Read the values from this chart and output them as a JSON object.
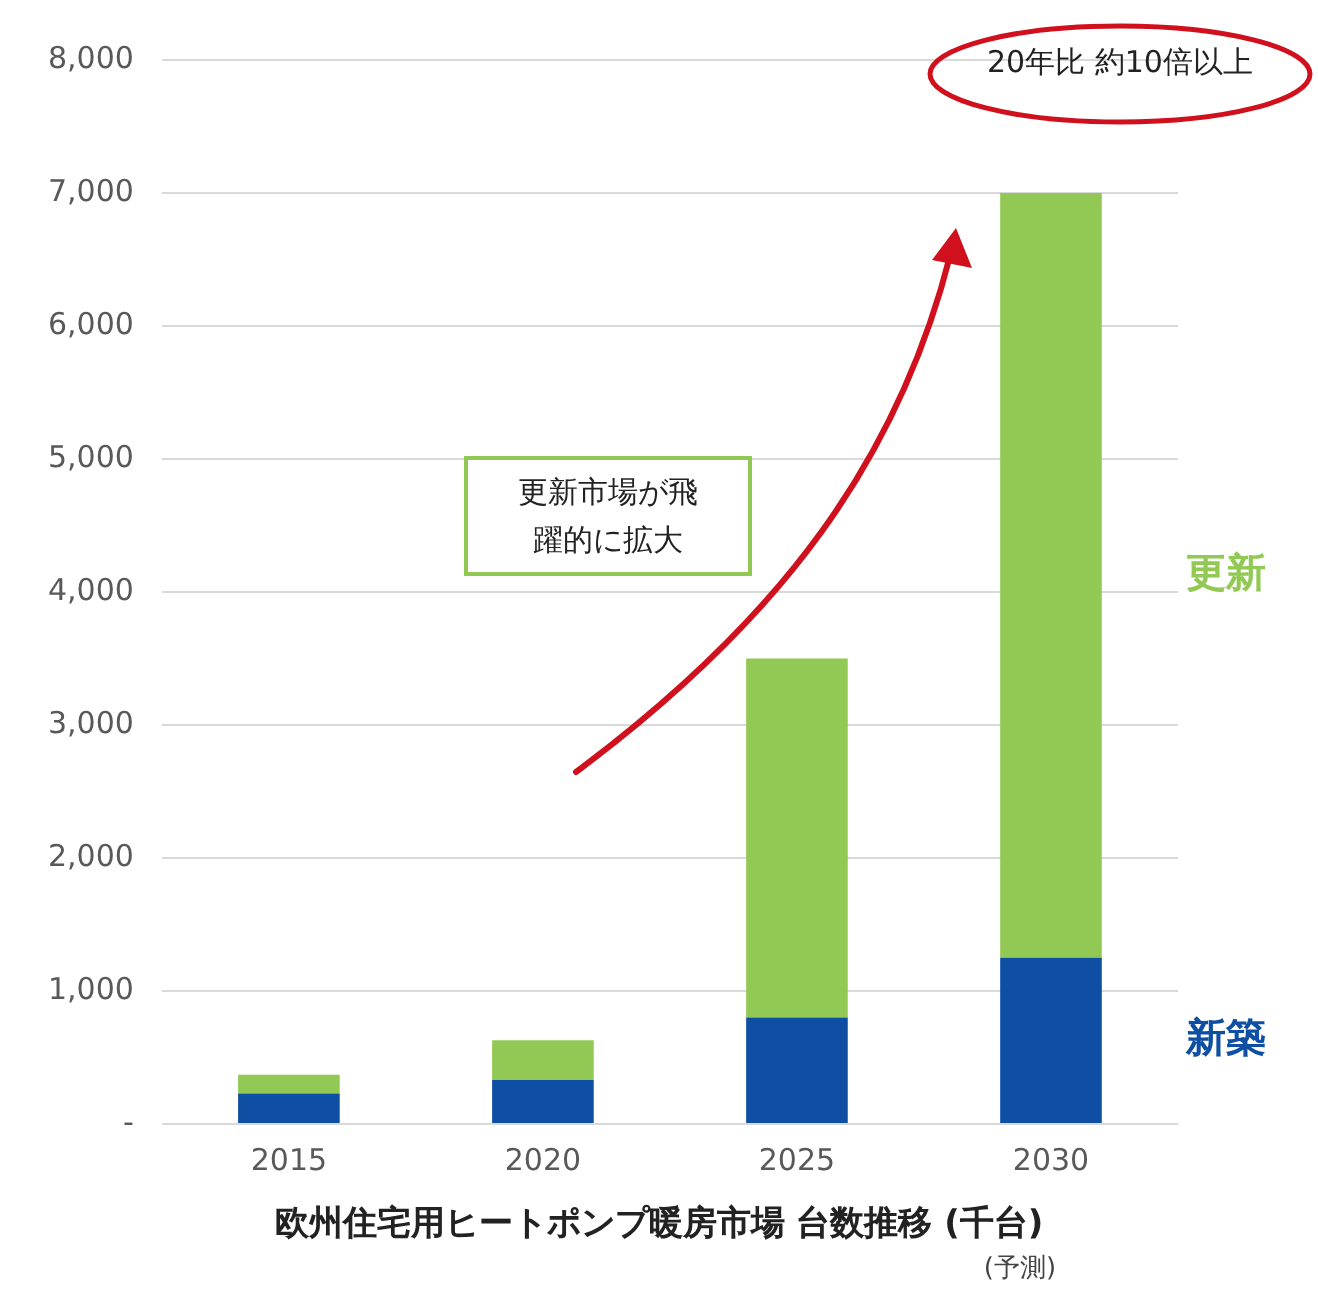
{
  "chart_data": {
    "type": "bar",
    "title": "欧州住宅用ヒートポンプ暖房市場 台数推移 (千台)",
    "categories": [
      "2015",
      "2020",
      "2025",
      "2030"
    ],
    "stacked": true,
    "series": [
      {
        "name": "新築",
        "color": "#0e4ea3",
        "values": [
          230,
          330,
          800,
          1250
        ]
      },
      {
        "name": "更新",
        "color": "#92c955",
        "values": [
          140,
          300,
          2700,
          5750
        ]
      }
    ],
    "ylim": [
      0,
      8000
    ],
    "yticks": [
      {
        "value": 0,
        "label": "-"
      },
      {
        "value": 1000,
        "label": "1,000"
      },
      {
        "value": 2000,
        "label": "2,000"
      },
      {
        "value": 3000,
        "label": "3,000"
      },
      {
        "value": 4000,
        "label": "4,000"
      },
      {
        "value": 5000,
        "label": "5,000"
      },
      {
        "value": 6000,
        "label": "6,000"
      },
      {
        "value": 7000,
        "label": "7,000"
      },
      {
        "value": 8000,
        "label": "8,000"
      }
    ],
    "grid": "y",
    "legend": false,
    "annotations": [
      "20年比 約10倍以上",
      "更新市場が飛躍的に拡大",
      "(予測)"
    ]
  }
}
